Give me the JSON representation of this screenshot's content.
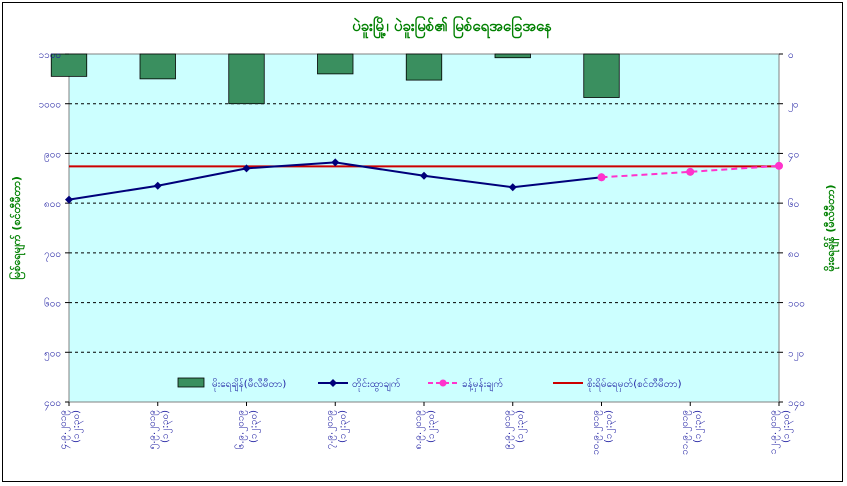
{
  "chart_data": {
    "type": "bar+line",
    "title": "ပဲခူးမြို့၊ ပဲခူးမြစ်၏ မြစ်ရေအခြေအနေ",
    "ylabel_left": "မြစ်ရေမျက် (စင်တီမီတာ)",
    "ylabel_right": "မိုးရေချိန် (မီလီမီတာ)",
    "categories": [
      "၄.၉.၂၀၁၉\n(၁၂:၃၀)",
      "၅.၉.၂၀၁၉\n(၁၂:၃၀)",
      "၆.၉.၂၀၁၉\n(၁၂:၃၀)",
      "၇.၉.၂၀၁၉\n(၁၂:၃၀)",
      "၈.၉.၂၀၁၉\n(၁၂:၃၀)",
      "၉.၉.၂၀၁၉\n(၁၂:၃၀)",
      "၁၀.၉.၂၀၁၉\n(၁၂:၃၀)",
      "၁၁.၉.၂၀၁၉\n(၁၂:၃၀)",
      "၁၂.၉.၂၀၁၉\n(၁၂:၃၀)"
    ],
    "left_axis": {
      "min": 400,
      "max": 1100,
      "ticks": [
        400,
        500,
        600,
        700,
        800,
        900,
        1000,
        1100
      ],
      "tick_labels": [
        "၄၀၀",
        "၅၀၀",
        "၆၀၀",
        "၇၀၀",
        "၈၀၀",
        "၉၀၀",
        "၁၀၀၀",
        "၁၁၀၀"
      ]
    },
    "right_axis": {
      "min": 0,
      "max": 140,
      "reversed": true,
      "ticks": [
        0,
        20,
        40,
        60,
        80,
        100,
        120,
        140
      ],
      "tick_labels": [
        "၀",
        "၂၀",
        "၄၀",
        "၆၀",
        "၈၀",
        "၁၀၀",
        "၁၂၀",
        "၁၄၀"
      ]
    },
    "grid": "dashed",
    "series": [
      {
        "name": "မိုးရေချိန်(မီလီမီတာ)",
        "kind": "bar",
        "axis": "right",
        "color": "#3a8f5f",
        "values": [
          9,
          10,
          20,
          8,
          10.5,
          1.5,
          17.5,
          null,
          null
        ]
      },
      {
        "name": "တိုင်းထွာချက်",
        "kind": "line",
        "axis": "left",
        "color": "#00007a",
        "values": [
          807,
          835,
          870,
          882,
          855,
          832,
          852,
          null,
          null
        ]
      },
      {
        "name": "ခန့်မှန်းချက်",
        "kind": "dashed-line",
        "axis": "left",
        "color": "#ff33cc",
        "values": [
          null,
          null,
          null,
          null,
          null,
          null,
          852,
          863,
          875
        ]
      },
      {
        "name": "စိုးရိမ်ရေမှတ်(စင်တီမီတာ)",
        "kind": "hline",
        "axis": "left",
        "color": "#cc0000",
        "value": 874
      }
    ],
    "legend_position": "bottom-inside"
  }
}
